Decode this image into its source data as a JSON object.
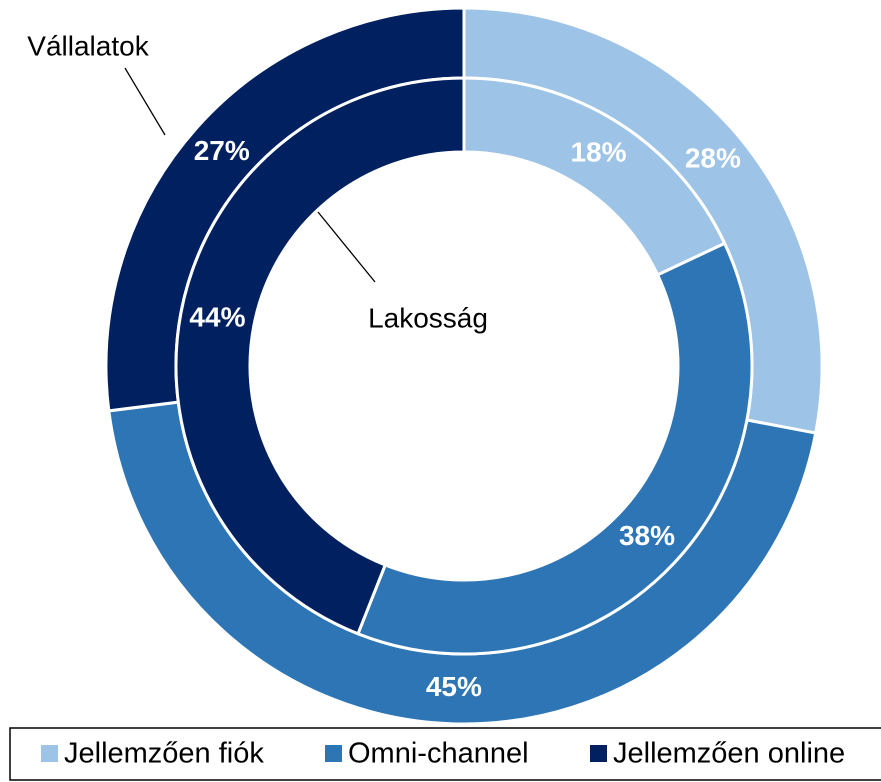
{
  "chart_data": {
    "type": "donut",
    "categories": [
      "Jellemzően fiók",
      "Omni-channel",
      "Jellemzően online"
    ],
    "colors": [
      "#9dc3e6",
      "#2e75b6",
      "#002060"
    ],
    "series": [
      {
        "name": "Vállalatok",
        "values": [
          28,
          45,
          27
        ],
        "value_labels": [
          "28%",
          "45%",
          "27%"
        ]
      },
      {
        "name": "Lakosság",
        "values": [
          18,
          38,
          44
        ],
        "value_labels": [
          "18%",
          "38%",
          "44%"
        ]
      }
    ],
    "legend": "bottom"
  }
}
